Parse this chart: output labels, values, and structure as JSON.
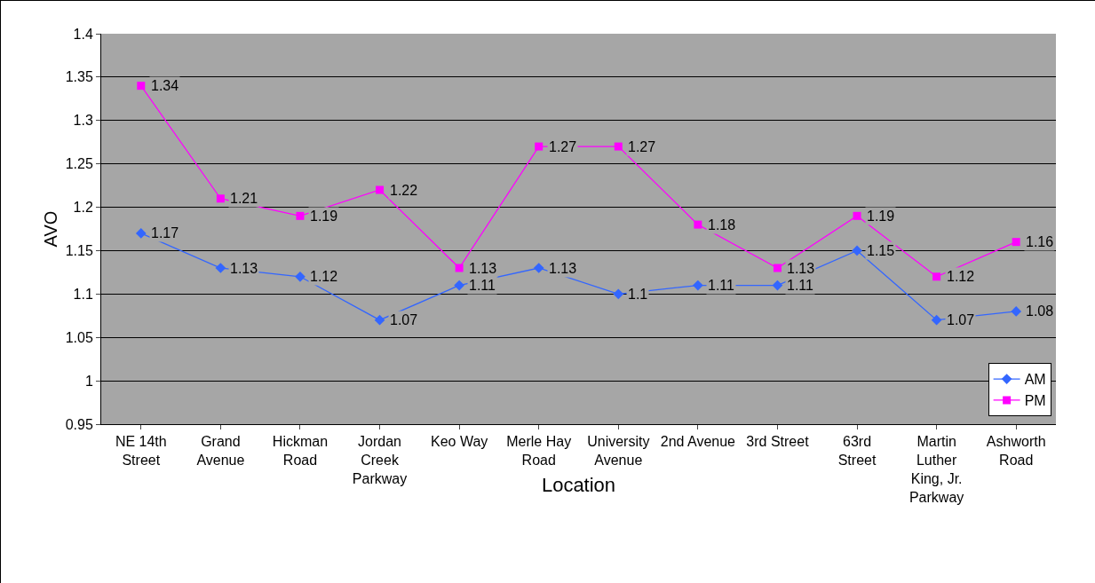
{
  "chart_data": {
    "type": "line",
    "xlabel": "Location",
    "ylabel": "AVO",
    "categories": [
      "NE 14th Street",
      "Grand Avenue",
      "Hickman Road",
      "Jordan Creek Parkway",
      "Keo Way",
      "Merle Hay Road",
      "University Avenue",
      "2nd Avenue",
      "3rd Street",
      "63rd Street",
      "Martin Luther King, Jr. Parkway",
      "Ashworth Road"
    ],
    "series": [
      {
        "name": "AM",
        "color": "#3366ff",
        "marker": "diamond",
        "values": [
          1.17,
          1.13,
          1.12,
          1.07,
          1.11,
          1.13,
          1.1,
          1.11,
          1.11,
          1.15,
          1.07,
          1.08
        ]
      },
      {
        "name": "PM",
        "color": "#ff00ff",
        "marker": "square",
        "values": [
          1.34,
          1.21,
          1.19,
          1.22,
          1.13,
          1.27,
          1.27,
          1.18,
          1.13,
          1.19,
          1.12,
          1.16
        ]
      }
    ],
    "ylim": [
      0.95,
      1.4
    ],
    "yticks": [
      0.95,
      1,
      1.05,
      1.1,
      1.15,
      1.2,
      1.25,
      1.3,
      1.35,
      1.4
    ],
    "grid": "y",
    "legend": "bottom right",
    "data_labels": true,
    "line_style": "solid"
  }
}
